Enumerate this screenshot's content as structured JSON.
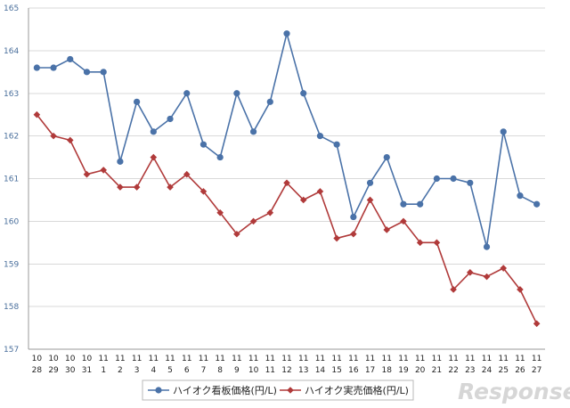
{
  "chart_data": {
    "type": "line",
    "title": "",
    "xlabel": "",
    "ylabel": "",
    "ylim": [
      157,
      165
    ],
    "yticks": [
      "157",
      "158",
      "159",
      "160",
      "161",
      "162",
      "163",
      "164",
      "165"
    ],
    "grid": true,
    "legend_position": "bottom",
    "categories": [
      {
        "month": "10",
        "day": "28"
      },
      {
        "month": "10",
        "day": "29"
      },
      {
        "month": "10",
        "day": "30"
      },
      {
        "month": "10",
        "day": "31"
      },
      {
        "month": "11",
        "day": "1"
      },
      {
        "month": "11",
        "day": "2"
      },
      {
        "month": "11",
        "day": "3"
      },
      {
        "month": "11",
        "day": "4"
      },
      {
        "month": "11",
        "day": "5"
      },
      {
        "month": "11",
        "day": "6"
      },
      {
        "month": "11",
        "day": "7"
      },
      {
        "month": "11",
        "day": "8"
      },
      {
        "month": "11",
        "day": "9"
      },
      {
        "month": "11",
        "day": "10"
      },
      {
        "month": "11",
        "day": "11"
      },
      {
        "month": "11",
        "day": "12"
      },
      {
        "month": "11",
        "day": "13"
      },
      {
        "month": "11",
        "day": "14"
      },
      {
        "month": "11",
        "day": "15"
      },
      {
        "month": "11",
        "day": "16"
      },
      {
        "month": "11",
        "day": "17"
      },
      {
        "month": "11",
        "day": "18"
      },
      {
        "month": "11",
        "day": "19"
      },
      {
        "month": "11",
        "day": "20"
      },
      {
        "month": "11",
        "day": "21"
      },
      {
        "month": "11",
        "day": "22"
      },
      {
        "month": "11",
        "day": "23"
      },
      {
        "month": "11",
        "day": "24"
      },
      {
        "month": "11",
        "day": "25"
      },
      {
        "month": "11",
        "day": "26"
      },
      {
        "month": "11",
        "day": "27"
      }
    ],
    "series": [
      {
        "name": "ハイオク看板価格(円/L)",
        "color": "#4a72a8",
        "marker": "circle",
        "values": [
          163.6,
          163.6,
          163.8,
          163.5,
          163.5,
          161.4,
          162.8,
          162.1,
          162.4,
          163.0,
          161.8,
          161.5,
          163.0,
          162.1,
          162.8,
          164.4,
          163.0,
          162.0,
          161.8,
          160.1,
          160.9,
          161.5,
          160.4,
          160.4,
          161.0,
          161.0,
          160.9,
          159.4,
          162.1,
          160.6,
          160.4
        ]
      },
      {
        "name": "ハイオク実売価格(円/L)",
        "color": "#b03a3a",
        "marker": "diamond",
        "values": [
          162.5,
          162.0,
          161.9,
          161.1,
          161.2,
          160.8,
          160.8,
          161.5,
          160.8,
          161.1,
          160.7,
          160.2,
          159.7,
          160.0,
          160.2,
          160.9,
          160.5,
          160.7,
          159.6,
          159.7,
          160.5,
          159.8,
          160.0,
          159.5,
          159.5,
          158.4,
          158.8,
          158.7,
          158.9,
          158.4,
          157.6
        ]
      }
    ]
  },
  "watermark": {
    "brand": "Response.",
    "domain": "Response."
  }
}
